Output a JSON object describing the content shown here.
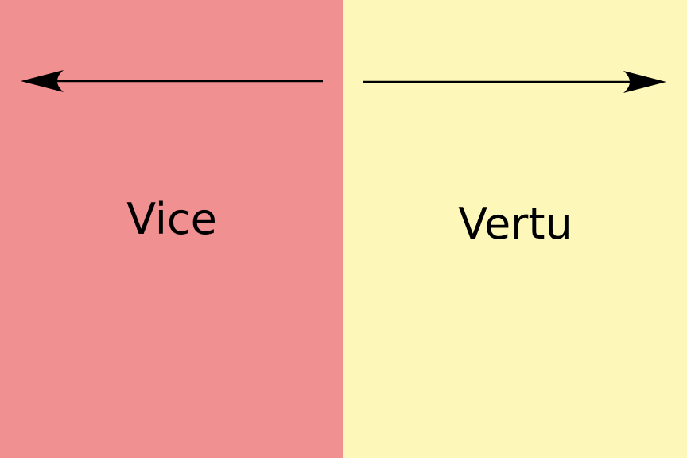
{
  "left": {
    "label": "Vice",
    "color": "#F09090",
    "arrow_direction": "left"
  },
  "right": {
    "label": "Vertu",
    "color": "#FDF8BA",
    "arrow_direction": "right"
  },
  "arrow_color": "#000000"
}
